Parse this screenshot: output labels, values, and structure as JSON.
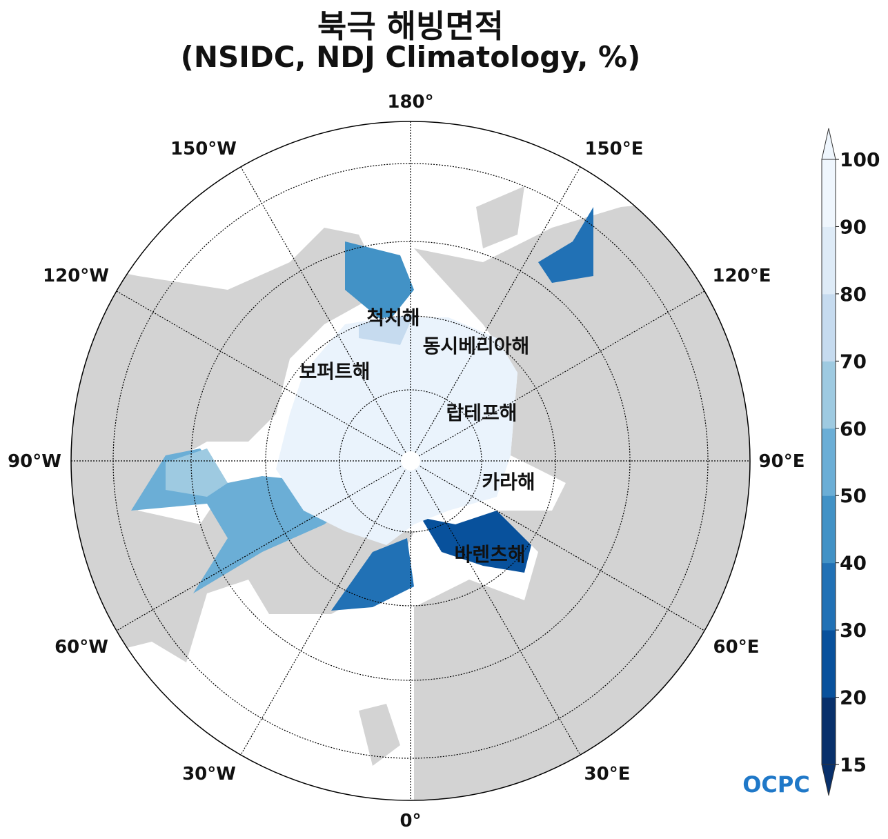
{
  "title": "북극 해빙면적",
  "subtitle": "(NSIDC, NDJ Climatology, %)",
  "longitude_labels": [
    "180°",
    "150°E",
    "120°E",
    "90°E",
    "60°E",
    "30°E",
    "0°",
    "30°W",
    "60°W",
    "90°W",
    "120°W",
    "150°W"
  ],
  "sea_labels": [
    "척치해",
    "동시베리아해",
    "보퍼트해",
    "랍테프해",
    "카라해",
    "바렌츠해"
  ],
  "colorbar": {
    "ticks": [
      "15",
      "20",
      "30",
      "40",
      "50",
      "60",
      "70",
      "80",
      "90",
      "100"
    ],
    "colors": [
      "#08306b",
      "#08519c",
      "#2171b5",
      "#4292c6",
      "#6baed6",
      "#9ecae1",
      "#c6dbef",
      "#deebf7",
      "#eff6fd"
    ],
    "extend": "both"
  },
  "colors": {
    "land": "#d3d3d3",
    "ocean": "#ffffff",
    "ice_core": "#eaf3fc"
  },
  "logo": "OCPC"
}
